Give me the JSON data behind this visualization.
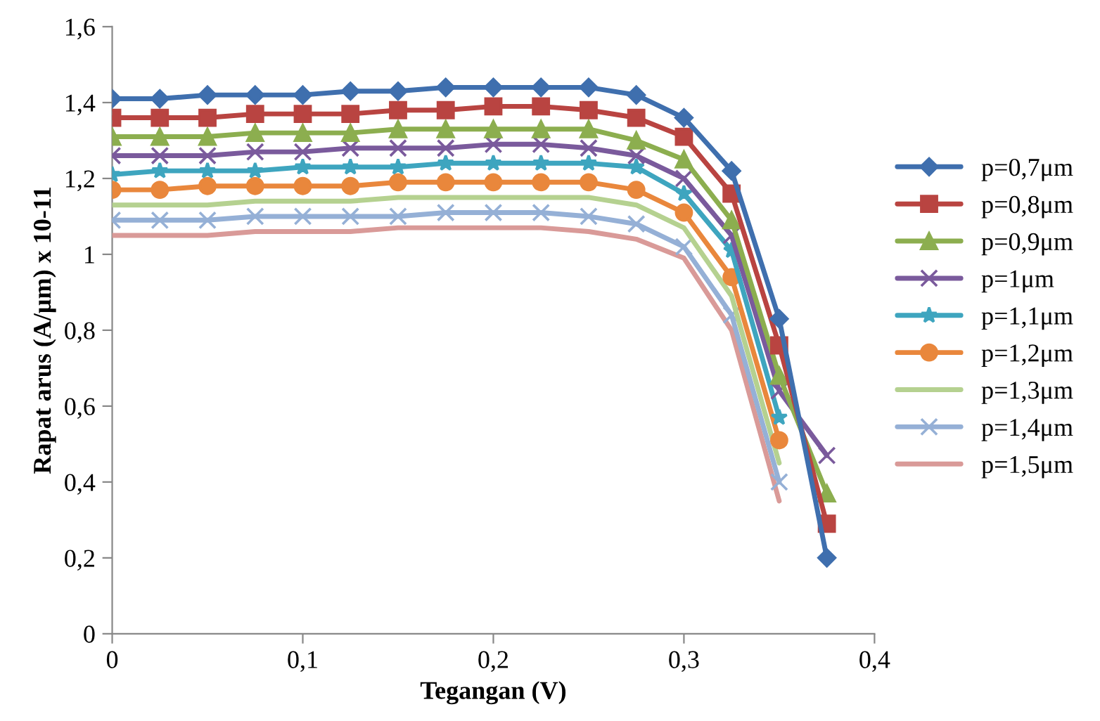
{
  "chart_data": {
    "type": "line",
    "xlabel": "Tegangan (V)",
    "ylabel": "Rapat arus (A/μm) x 10-11",
    "x": [
      0,
      0.025,
      0.05,
      0.075,
      0.1,
      0.125,
      0.15,
      0.175,
      0.2,
      0.225,
      0.25,
      0.275,
      0.3,
      0.325,
      0.35,
      0.375
    ],
    "xlim": [
      0,
      0.4
    ],
    "xticks": [
      {
        "value": 0,
        "label": "0"
      },
      {
        "value": 0.1,
        "label": "0,1"
      },
      {
        "value": 0.2,
        "label": "0,2"
      },
      {
        "value": 0.3,
        "label": "0,3"
      },
      {
        "value": 0.4,
        "label": "0,4"
      }
    ],
    "ylim": [
      0,
      1.6
    ],
    "yticks": [
      {
        "value": 0,
        "label": "0"
      },
      {
        "value": 0.2,
        "label": "0,2"
      },
      {
        "value": 0.4,
        "label": "0,4"
      },
      {
        "value": 0.6,
        "label": "0,6"
      },
      {
        "value": 0.8,
        "label": "0,8"
      },
      {
        "value": 1,
        "label": "1"
      },
      {
        "value": 1.2,
        "label": "1,2"
      },
      {
        "value": 1.4,
        "label": "1,4"
      },
      {
        "value": 1.6,
        "label": "1,6"
      }
    ],
    "grid": false,
    "legend": "right",
    "line_style": "solid",
    "series": [
      {
        "name": "p=0,7μm",
        "color": "#3f6fae",
        "marker": "diamond",
        "values": [
          1.41,
          1.41,
          1.42,
          1.42,
          1.42,
          1.43,
          1.43,
          1.44,
          1.44,
          1.44,
          1.44,
          1.42,
          1.36,
          1.22,
          0.83,
          0.2
        ]
      },
      {
        "name": "p=0,8μm",
        "color": "#b94441",
        "marker": "square",
        "values": [
          1.36,
          1.36,
          1.36,
          1.37,
          1.37,
          1.37,
          1.38,
          1.38,
          1.39,
          1.39,
          1.38,
          1.36,
          1.31,
          1.16,
          0.76,
          0.29
        ]
      },
      {
        "name": "p=0,9μm",
        "color": "#8cae4f",
        "marker": "triangle",
        "values": [
          1.31,
          1.31,
          1.31,
          1.32,
          1.32,
          1.32,
          1.33,
          1.33,
          1.33,
          1.33,
          1.33,
          1.3,
          1.25,
          1.09,
          0.68,
          0.37
        ]
      },
      {
        "name": "p=1μm",
        "color": "#7a5a9c",
        "marker": "cross",
        "values": [
          1.26,
          1.26,
          1.26,
          1.27,
          1.27,
          1.28,
          1.28,
          1.28,
          1.29,
          1.29,
          1.28,
          1.26,
          1.2,
          1.05,
          0.64,
          0.47
        ]
      },
      {
        "name": "p=1,1μm",
        "color": "#3ea5bf",
        "marker": "star",
        "values": [
          1.21,
          1.22,
          1.22,
          1.22,
          1.23,
          1.23,
          1.23,
          1.24,
          1.24,
          1.24,
          1.24,
          1.23,
          1.16,
          1.01,
          0.57,
          null
        ]
      },
      {
        "name": "p=1,2μm",
        "color": "#e9873c",
        "marker": "circle",
        "values": [
          1.17,
          1.17,
          1.18,
          1.18,
          1.18,
          1.18,
          1.19,
          1.19,
          1.19,
          1.19,
          1.19,
          1.17,
          1.11,
          0.94,
          0.51,
          null
        ]
      },
      {
        "name": "p=1,3μm",
        "color": "#b5d190",
        "marker": "none",
        "values": [
          1.13,
          1.13,
          1.13,
          1.14,
          1.14,
          1.14,
          1.15,
          1.15,
          1.15,
          1.15,
          1.15,
          1.13,
          1.07,
          0.89,
          0.45,
          null
        ]
      },
      {
        "name": "p=1,4μm",
        "color": "#95b0d6",
        "marker": "cross",
        "values": [
          1.09,
          1.09,
          1.09,
          1.1,
          1.1,
          1.1,
          1.1,
          1.11,
          1.11,
          1.11,
          1.1,
          1.08,
          1.02,
          0.84,
          0.4,
          null
        ]
      },
      {
        "name": "p=1,5μm",
        "color": "#d99a98",
        "marker": "none",
        "values": [
          1.05,
          1.05,
          1.05,
          1.06,
          1.06,
          1.06,
          1.07,
          1.07,
          1.07,
          1.07,
          1.06,
          1.04,
          0.99,
          0.8,
          0.35,
          null
        ]
      }
    ]
  }
}
